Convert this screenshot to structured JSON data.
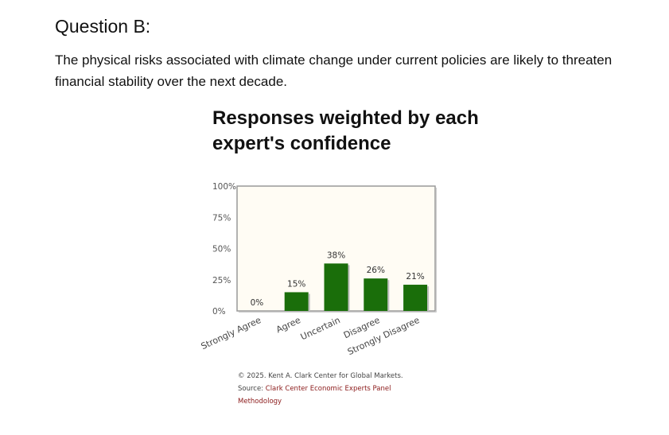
{
  "question": {
    "title": "Question B:",
    "text": "The physical risks associated with climate change under current policies are likely to threaten financial stability over the next decade."
  },
  "chart_data": {
    "type": "bar",
    "title": "Responses weighted by each expert's confidence",
    "categories": [
      "Strongly Agree",
      "Agree",
      "Uncertain",
      "Disagree",
      "Strongly Disagree"
    ],
    "values": [
      0,
      15,
      38,
      26,
      21
    ],
    "value_labels": [
      "0%",
      "15%",
      "38%",
      "26%",
      "21%"
    ],
    "yticks": [
      "0%",
      "25%",
      "50%",
      "75%",
      "100%"
    ],
    "ylim": [
      0,
      100
    ],
    "bar_color": "#1a6e0a",
    "plot_background": "#fffcf4",
    "grid": false,
    "legend": "none"
  },
  "credits": {
    "copyright": "© 2025. Kent A. Clark Center for Global Markets.",
    "source_prefix": "Source: ",
    "source_link": "Clark Center Economic Experts Panel",
    "methodology": "Methodology",
    "link_color": "#8b1a1a"
  }
}
